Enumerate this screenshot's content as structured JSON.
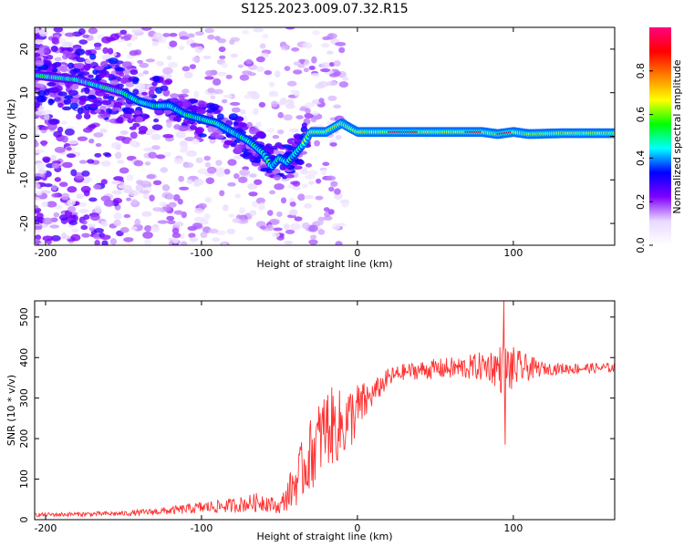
{
  "title": "S125.2023.009.07.32.R15",
  "chart_data": [
    {
      "type": "heatmap",
      "xlabel": "Height of straight line (km)",
      "ylabel": "Frequency (Hz)",
      "xlim": [
        -207,
        165
      ],
      "ylim": [
        -25,
        25
      ],
      "xticks": [
        -200,
        -100,
        0,
        100
      ],
      "yticks": [
        20,
        10,
        0,
        -10,
        -20
      ],
      "colorbar": {
        "label": "Normalized spectral amplitude",
        "range": [
          0,
          1
        ],
        "ticks": [
          0.0,
          0.2,
          0.4,
          0.6,
          0.8
        ],
        "colors": [
          "#ffffff",
          "#e8d9ff",
          "#8000ff",
          "#0000ff",
          "#00ffff",
          "#00ff00",
          "#ffff00",
          "#ff8000",
          "#ff0000",
          "#ff0080"
        ]
      },
      "ridge": [
        [
          -207,
          14
        ],
        [
          -180,
          13
        ],
        [
          -150,
          10
        ],
        [
          -140,
          8
        ],
        [
          -130,
          7
        ],
        [
          -120,
          7
        ],
        [
          -110,
          5
        ],
        [
          -100,
          4
        ],
        [
          -90,
          3
        ],
        [
          -80,
          1
        ],
        [
          -70,
          -1
        ],
        [
          -60,
          -4
        ],
        [
          -55,
          -7
        ],
        [
          -50,
          -5
        ],
        [
          -45,
          -6
        ],
        [
          -40,
          -4
        ],
        [
          -35,
          -2
        ],
        [
          -30,
          1
        ],
        [
          -20,
          1
        ],
        [
          -10,
          3
        ],
        [
          0,
          1
        ],
        [
          20,
          1
        ],
        [
          50,
          1
        ],
        [
          80,
          1
        ],
        [
          90,
          0.5
        ],
        [
          100,
          1
        ],
        [
          110,
          0.5
        ],
        [
          130,
          0.7
        ],
        [
          165,
          0.7
        ]
      ]
    },
    {
      "type": "line",
      "xlabel": "Height of straight line (km)",
      "ylabel": "SNR (10 * v/v)",
      "xlim": [
        -207,
        165
      ],
      "ylim": [
        0,
        540
      ],
      "xticks": [
        -200,
        -100,
        0,
        100
      ],
      "yticks": [
        0,
        100,
        200,
        300,
        400,
        500
      ],
      "color": "#ff3333",
      "envelope": [
        [
          -207,
          12,
          5
        ],
        [
          -150,
          15,
          6
        ],
        [
          -120,
          22,
          10
        ],
        [
          -100,
          30,
          15
        ],
        [
          -80,
          35,
          18
        ],
        [
          -60,
          45,
          25
        ],
        [
          -50,
          30,
          15
        ],
        [
          -40,
          90,
          60
        ],
        [
          -30,
          160,
          90
        ],
        [
          -20,
          230,
          100
        ],
        [
          -10,
          230,
          90
        ],
        [
          0,
          270,
          70
        ],
        [
          10,
          310,
          30
        ],
        [
          20,
          350,
          25
        ],
        [
          30,
          365,
          20
        ],
        [
          50,
          372,
          25
        ],
        [
          70,
          375,
          30
        ],
        [
          85,
          380,
          40
        ],
        [
          95,
          370,
          70
        ],
        [
          105,
          375,
          40
        ],
        [
          120,
          372,
          15
        ],
        [
          165,
          375,
          12
        ]
      ],
      "spikes": [
        [
          94,
          540
        ],
        [
          94.6,
          185
        ]
      ]
    }
  ]
}
